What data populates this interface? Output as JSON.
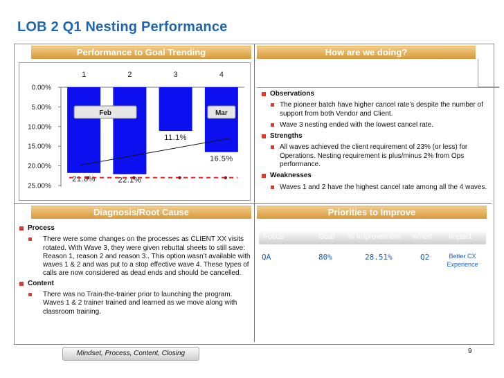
{
  "title": "LOB 2 Q1 Nesting Performance",
  "sections": {
    "trend_header": "Performance to Goal Trending",
    "doing_header": "How are we doing?",
    "diagnosis_header": "Diagnosis/Root Cause",
    "priorities_header": "Priorities to Improve"
  },
  "chart_data": {
    "type": "bar",
    "categories": [
      "1",
      "2",
      "3",
      "4"
    ],
    "values": [
      21.8,
      22.1,
      11.1,
      16.5
    ],
    "value_labels": [
      "21.8%",
      "22.1%",
      "11.1%",
      "16.5%"
    ],
    "y_ticks": [
      "0.00%",
      "5.00%",
      "10.00%",
      "15.00%",
      "20.00%",
      "25.00%"
    ],
    "ylim": [
      0,
      25
    ],
    "y_inverted": true,
    "month_labels": [
      {
        "text": "Feb",
        "bar": 1
      },
      {
        "text": "Mar",
        "bar": 4
      }
    ],
    "goal_line": 23,
    "bar_color": "#0c10ee",
    "goal_color": "#e82020"
  },
  "observations": {
    "label": "Observations",
    "items": [
      "The pioneer batch have higher cancel rate’s despite the number of support from both Vendor and Client.",
      "Wave 3 nesting ended with the lowest cancel rate."
    ]
  },
  "strengths": {
    "label": "Strengths",
    "items": [
      "All waves achieved the client requirement of 23% (or less) for Operations. Nesting requirement is plus/minus 2% from Ops performance."
    ]
  },
  "weaknesses": {
    "label": "Weaknesses",
    "items": [
      "Waves 1 and 2 have the highest cancel rate among all the 4 waves."
    ]
  },
  "process": {
    "label": "Process",
    "text": "There were some changes on the processes as CLIENT XX visits rotated. With Wave 3, they were given rebuttal sheets to still save: Reason 1, reason 2 and reason 3.. This option wasn’t available with waves 1 & 2 and was put to a stop effective wave 4. These types of calls are now considered as dead ends and should be cancelled."
  },
  "content": {
    "label": "Content",
    "text": "There was no Train-the-trainer prior to launching the program. Waves 1 & 2 trainer trained and learned as we move along with classroom training."
  },
  "priorities": {
    "headers": [
      "Focus",
      "Goal",
      "% Improvement",
      "When",
      "Impact"
    ],
    "row": [
      "QA",
      "80%",
      "28.51%",
      "Q2",
      "Better CX Experience"
    ]
  },
  "footer": {
    "pill": "Mindset, Process, Content, Closing",
    "page": "9"
  },
  "colors": {
    "title": "#1f66b1",
    "header_band": "#e0a247",
    "bullet": "#e03b2a",
    "priority_text": "#1f5fbd"
  }
}
